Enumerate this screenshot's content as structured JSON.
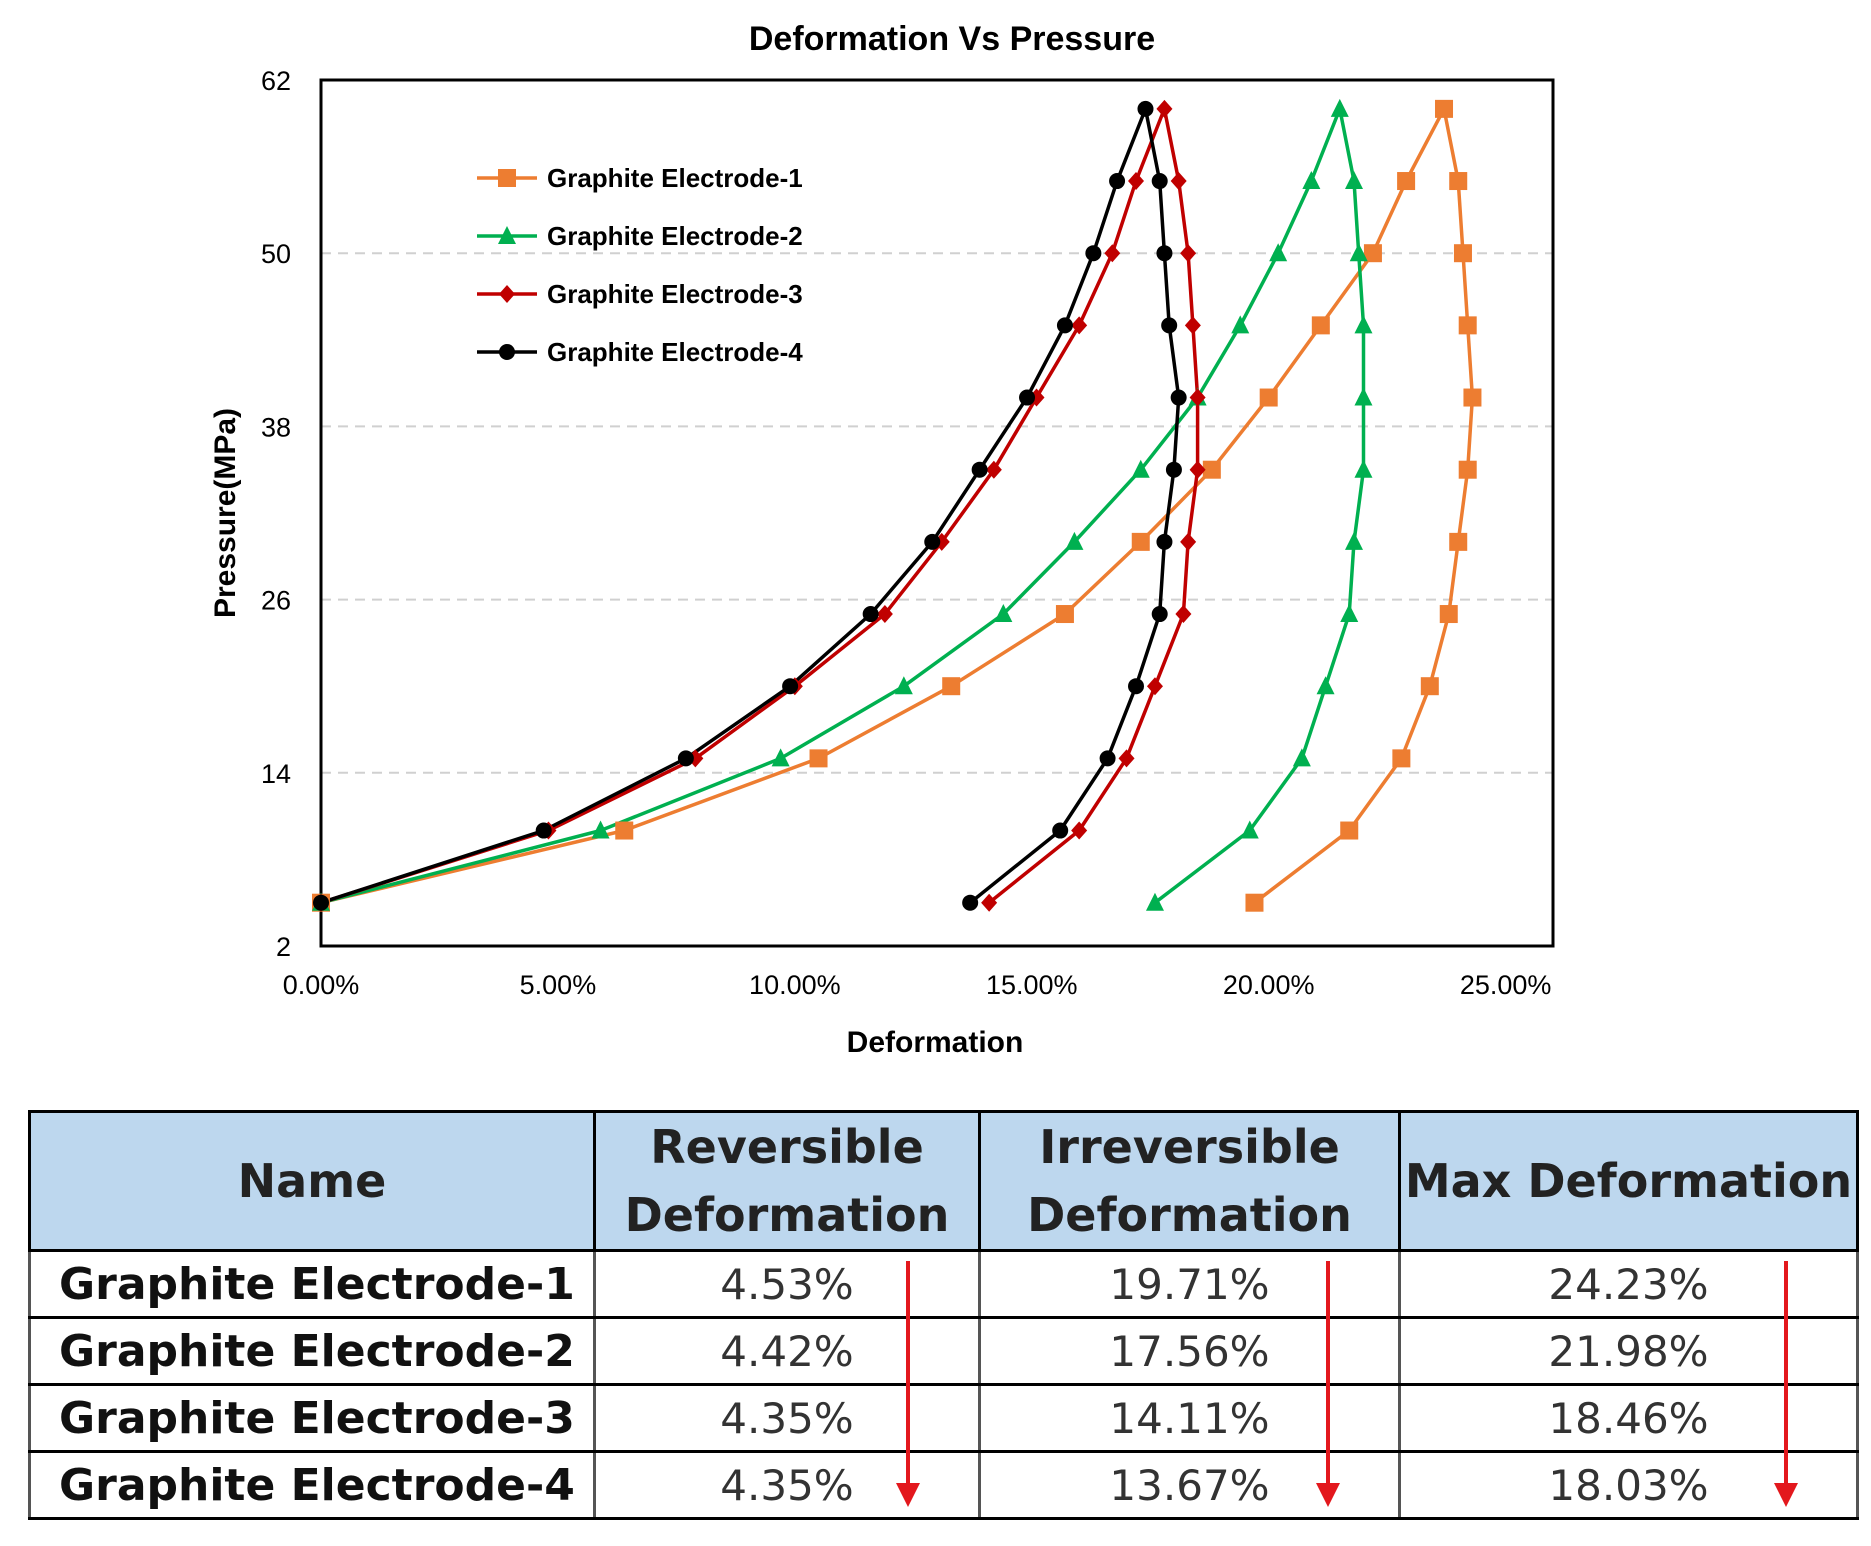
{
  "chart_data": {
    "type": "line",
    "title": "Deformation Vs Pressure",
    "xlabel": "Deformation",
    "ylabel": "Pressure(MPa)",
    "xlim": [
      0,
      0.26
    ],
    "ylim": [
      2,
      62
    ],
    "x_ticks": [
      "0.00%",
      "5.00%",
      "10.00%",
      "15.00%",
      "20.00%",
      "25.00%"
    ],
    "x_tick_values": [
      0,
      0.05,
      0.1,
      0.15,
      0.2,
      0.25
    ],
    "y_ticks": [
      "2",
      "14",
      "26",
      "38",
      "50",
      "62"
    ],
    "y_tick_values": [
      2,
      14,
      26,
      38,
      50,
      62
    ],
    "grid": "horizontal dashed",
    "legend_position": "top-left",
    "series": [
      {
        "name": "Graphite Electrode-1",
        "color": "#ed7d31",
        "marker": "square",
        "points": [
          [
            0.0,
            5
          ],
          [
            0.064,
            10
          ],
          [
            0.105,
            15
          ],
          [
            0.133,
            20
          ],
          [
            0.157,
            25
          ],
          [
            0.173,
            30
          ],
          [
            0.188,
            35
          ],
          [
            0.2,
            40
          ],
          [
            0.211,
            45
          ],
          [
            0.222,
            50
          ],
          [
            0.229,
            55
          ],
          [
            0.237,
            60
          ],
          [
            0.24,
            55
          ],
          [
            0.241,
            50
          ],
          [
            0.242,
            45
          ],
          [
            0.243,
            40
          ],
          [
            0.242,
            35
          ],
          [
            0.24,
            30
          ],
          [
            0.238,
            25
          ],
          [
            0.234,
            20
          ],
          [
            0.228,
            15
          ],
          [
            0.217,
            10
          ],
          [
            0.197,
            5
          ]
        ]
      },
      {
        "name": "Graphite Electrode-2",
        "color": "#00b050",
        "marker": "triangle",
        "points": [
          [
            0.0,
            5
          ],
          [
            0.059,
            10
          ],
          [
            0.097,
            15
          ],
          [
            0.123,
            20
          ],
          [
            0.144,
            25
          ],
          [
            0.159,
            30
          ],
          [
            0.173,
            35
          ],
          [
            0.185,
            40
          ],
          [
            0.194,
            45
          ],
          [
            0.202,
            50
          ],
          [
            0.209,
            55
          ],
          [
            0.215,
            60
          ],
          [
            0.218,
            55
          ],
          [
            0.219,
            50
          ],
          [
            0.22,
            45
          ],
          [
            0.22,
            40
          ],
          [
            0.22,
            35
          ],
          [
            0.218,
            30
          ],
          [
            0.217,
            25
          ],
          [
            0.212,
            20
          ],
          [
            0.207,
            15
          ],
          [
            0.196,
            10
          ],
          [
            0.176,
            5
          ]
        ]
      },
      {
        "name": "Graphite Electrode-3",
        "color": "#c00000",
        "marker": "diamond",
        "points": [
          [
            0.0,
            5
          ],
          [
            0.048,
            10
          ],
          [
            0.079,
            15
          ],
          [
            0.1,
            20
          ],
          [
            0.119,
            25
          ],
          [
            0.131,
            30
          ],
          [
            0.142,
            35
          ],
          [
            0.151,
            40
          ],
          [
            0.16,
            45
          ],
          [
            0.167,
            50
          ],
          [
            0.172,
            55
          ],
          [
            0.178,
            60
          ],
          [
            0.181,
            55
          ],
          [
            0.183,
            50
          ],
          [
            0.184,
            45
          ],
          [
            0.185,
            40
          ],
          [
            0.185,
            35
          ],
          [
            0.183,
            30
          ],
          [
            0.182,
            25
          ],
          [
            0.176,
            20
          ],
          [
            0.17,
            15
          ],
          [
            0.16,
            10
          ],
          [
            0.141,
            5
          ]
        ]
      },
      {
        "name": "Graphite Electrode-4",
        "color": "#000000",
        "marker": "circle",
        "points": [
          [
            0.0,
            5
          ],
          [
            0.047,
            10
          ],
          [
            0.077,
            15
          ],
          [
            0.099,
            20
          ],
          [
            0.116,
            25
          ],
          [
            0.129,
            30
          ],
          [
            0.139,
            35
          ],
          [
            0.149,
            40
          ],
          [
            0.157,
            45
          ],
          [
            0.163,
            50
          ],
          [
            0.168,
            55
          ],
          [
            0.174,
            60
          ],
          [
            0.177,
            55
          ],
          [
            0.178,
            50
          ],
          [
            0.179,
            45
          ],
          [
            0.181,
            40
          ],
          [
            0.18,
            35
          ],
          [
            0.178,
            30
          ],
          [
            0.177,
            25
          ],
          [
            0.172,
            20
          ],
          [
            0.166,
            15
          ],
          [
            0.156,
            10
          ],
          [
            0.137,
            5
          ]
        ]
      }
    ]
  },
  "table": {
    "headers": [
      "Name",
      "Reversible Deformation",
      "Irreversible Deformation",
      "Max Deformation"
    ],
    "rows": [
      [
        "Graphite Electrode-1",
        "4.53%",
        "19.71%",
        "24.23%"
      ],
      [
        "Graphite Electrode-2",
        "4.42%",
        "17.56%",
        "21.98%"
      ],
      [
        "Graphite Electrode-3",
        "4.35%",
        "14.11%",
        "18.46%"
      ],
      [
        "Graphite Electrode-4",
        "4.35%",
        "13.67%",
        "18.03%"
      ]
    ],
    "header_color": "#bdd7ee",
    "arrow_color": "#e3181d",
    "trend_icon": "down-arrow-icon"
  }
}
